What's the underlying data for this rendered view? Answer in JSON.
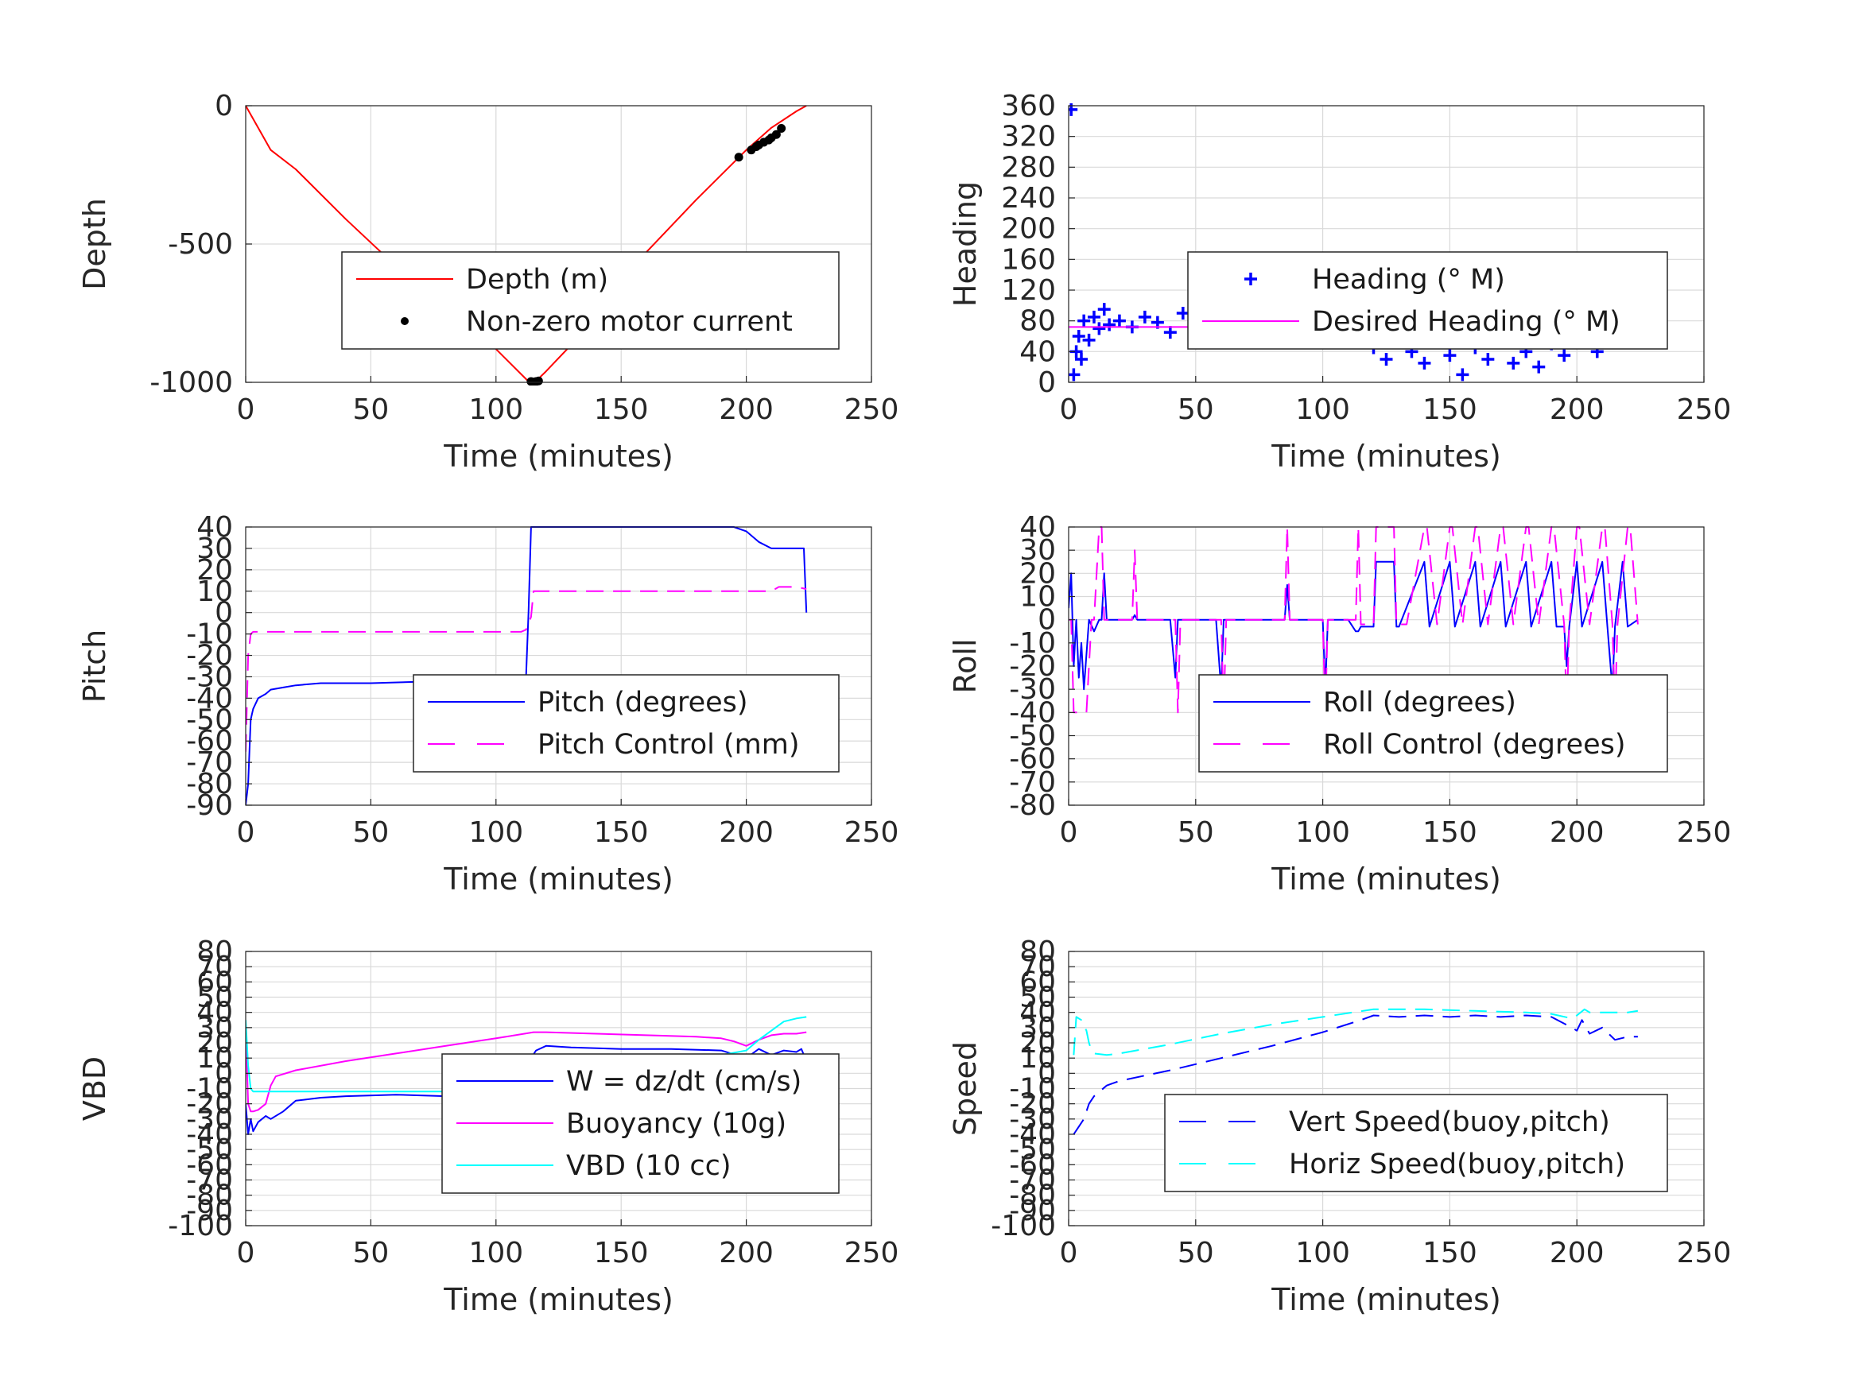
{
  "chart_data": [
    {
      "type": "line",
      "ylabel": "Depth",
      "xlabel": "Time (minutes)",
      "xlim": [
        0,
        250
      ],
      "ylim": [
        -1000,
        0
      ],
      "xticks": [
        0,
        50,
        100,
        150,
        200,
        250
      ],
      "yticks": [
        -1000,
        -500,
        0
      ],
      "legend": {
        "placement": "center",
        "entries": [
          "Depth (m)",
          "Non-zero motor current"
        ]
      },
      "series": [
        {
          "name": "Depth (m)",
          "color": "#ff0000",
          "style": "solid",
          "x": [
            0,
            5,
            10,
            20,
            40,
            60,
            80,
            100,
            113,
            116,
            120,
            140,
            160,
            180,
            200,
            210,
            220,
            224
          ],
          "y": [
            0,
            -80,
            -160,
            -230,
            -410,
            -580,
            -730,
            -880,
            -997,
            -995,
            -960,
            -770,
            -530,
            -340,
            -160,
            -80,
            -20,
            0
          ]
        },
        {
          "name": "Non-zero motor current",
          "color": "#000000",
          "style": "marker-dot",
          "x": [
            114,
            115,
            116,
            117,
            197,
            202,
            204,
            205,
            207,
            209,
            210,
            212,
            214
          ],
          "y": [
            -997,
            -999,
            -997,
            -995,
            -186,
            -160,
            -148,
            -142,
            -132,
            -124,
            -116,
            -104,
            -82
          ]
        }
      ]
    },
    {
      "type": "scatter",
      "ylabel": "Heading",
      "xlabel": "Time (minutes)",
      "xlim": [
        0,
        250
      ],
      "ylim": [
        0,
        360
      ],
      "xticks": [
        0,
        50,
        100,
        150,
        200,
        250
      ],
      "yticks": [
        0,
        40,
        80,
        120,
        160,
        200,
        240,
        280,
        320,
        360
      ],
      "legend": {
        "placement": "center",
        "entries": [
          "Heading (° M)",
          "Desired Heading (° M)"
        ]
      },
      "series": [
        {
          "name": "Heading (° M)",
          "color": "#0000ff",
          "style": "marker-plus",
          "x": [
            1,
            2,
            3,
            4,
            5,
            6,
            8,
            10,
            12,
            14,
            16,
            20,
            25,
            30,
            35,
            40,
            45,
            50,
            55,
            60,
            65,
            70,
            75,
            80,
            85,
            90,
            95,
            100,
            105,
            110,
            115,
            118,
            120,
            125,
            130,
            135,
            140,
            145,
            150,
            155,
            160,
            165,
            170,
            175,
            180,
            185,
            190,
            195,
            200,
            203,
            205,
            208,
            210,
            215,
            220,
            224
          ],
          "y": [
            355,
            10,
            40,
            60,
            30,
            80,
            55,
            85,
            70,
            95,
            75,
            80,
            72,
            85,
            78,
            65,
            90,
            70,
            80,
            75,
            72,
            78,
            70,
            75,
            80,
            72,
            70,
            65,
            72,
            75,
            70,
            65,
            45,
            30,
            55,
            40,
            25,
            60,
            35,
            10,
            45,
            30,
            55,
            25,
            40,
            20,
            50,
            35,
            65,
            130,
            90,
            40,
            75,
            60,
            100,
            65
          ]
        },
        {
          "name": "Desired Heading (° M)",
          "color": "#ff00ff",
          "style": "solid",
          "x": [
            0,
            224
          ],
          "y": [
            72,
            72
          ]
        }
      ]
    },
    {
      "type": "line",
      "ylabel": "Pitch",
      "xlabel": "Time (minutes)",
      "xlim": [
        0,
        250
      ],
      "ylim": [
        -90,
        40
      ],
      "xticks": [
        0,
        50,
        100,
        150,
        200,
        250
      ],
      "yticks": [
        -90,
        -80,
        -70,
        -60,
        -50,
        -40,
        -30,
        -20,
        -10,
        0,
        10,
        20,
        30,
        40
      ],
      "legend": {
        "placement": "center",
        "entries": [
          "Pitch (degrees)",
          "Pitch Control (mm)"
        ]
      },
      "series": [
        {
          "name": "Pitch (degrees)",
          "color": "#0000ff",
          "style": "solid",
          "x": [
            0,
            1,
            2,
            3,
            5,
            8,
            10,
            15,
            20,
            30,
            50,
            80,
            100,
            110,
            112,
            113,
            114,
            115,
            120,
            150,
            180,
            195,
            200,
            205,
            210,
            215,
            220,
            223,
            224
          ],
          "y": [
            -90,
            -80,
            -50,
            -45,
            -40,
            -38,
            -36,
            -35,
            -34,
            -33,
            -33,
            -32,
            -32,
            -31,
            -30,
            0,
            40,
            40,
            40,
            40,
            40,
            40,
            38,
            33,
            30,
            30,
            30,
            30,
            0
          ]
        },
        {
          "name": "Pitch Control (mm)",
          "color": "#ff00ff",
          "style": "dashed",
          "x": [
            0,
            1,
            2,
            3,
            5,
            100,
            110,
            112,
            113,
            114,
            115,
            120,
            150,
            200,
            210,
            213,
            220,
            224
          ],
          "y": [
            -65,
            -20,
            -10,
            -9,
            -9,
            -9,
            -9,
            -8,
            -5,
            -2,
            10,
            10,
            10,
            10,
            10,
            12,
            12,
            11
          ]
        }
      ]
    },
    {
      "type": "line",
      "ylabel": "Roll",
      "xlabel": "Time (minutes)",
      "xlim": [
        0,
        250
      ],
      "ylim": [
        -80,
        40
      ],
      "xticks": [
        0,
        50,
        100,
        150,
        200,
        250
      ],
      "yticks": [
        -80,
        -70,
        -60,
        -50,
        -40,
        -30,
        -20,
        -10,
        0,
        10,
        20,
        30,
        40
      ],
      "legend": {
        "placement": "center",
        "entries": [
          "Roll (degrees)",
          "Roll Control (degrees)"
        ]
      },
      "series": [
        {
          "name": "Roll (degrees)",
          "color": "#0000ff",
          "style": "solid",
          "x": [
            0,
            1,
            2,
            3,
            4,
            5,
            6,
            8,
            10,
            12,
            13,
            14,
            15,
            20,
            25,
            26,
            27,
            30,
            40,
            42,
            43,
            44,
            50,
            58,
            60,
            61,
            62,
            80,
            85,
            86,
            87,
            100,
            101,
            102,
            110,
            113,
            114,
            115,
            120,
            121,
            122,
            128,
            129,
            130,
            140,
            142,
            150,
            152,
            160,
            162,
            170,
            172,
            180,
            182,
            190,
            192,
            195,
            196,
            197,
            200,
            202,
            210,
            212,
            214,
            215,
            218,
            220,
            224
          ],
          "y": [
            5,
            20,
            -20,
            0,
            -25,
            -10,
            -30,
            0,
            -5,
            0,
            0,
            20,
            0,
            0,
            0,
            2,
            0,
            0,
            0,
            -25,
            0,
            0,
            0,
            0,
            -30,
            0,
            0,
            0,
            0,
            15,
            0,
            0,
            -30,
            0,
            0,
            -5,
            -5,
            -3,
            -3,
            25,
            25,
            25,
            -3,
            -3,
            25,
            -3,
            25,
            -3,
            25,
            -3,
            25,
            -3,
            25,
            -3,
            25,
            -3,
            -3,
            -20,
            -3,
            25,
            -3,
            25,
            -3,
            -30,
            -3,
            25,
            -3,
            0
          ]
        },
        {
          "name": "Roll Control (degrees)",
          "color": "#ff00ff",
          "style": "dashed",
          "x": [
            0,
            1,
            2,
            3,
            5,
            7,
            9,
            10,
            12,
            13,
            14,
            16,
            25,
            26,
            27,
            42,
            43,
            44,
            60,
            61,
            62,
            85,
            86,
            87,
            100,
            101,
            102,
            113,
            114,
            115,
            120,
            121,
            123,
            128,
            129,
            133,
            140,
            141,
            145,
            150,
            151,
            155,
            160,
            161,
            165,
            170,
            171,
            175,
            180,
            181,
            185,
            190,
            191,
            195,
            196,
            197,
            200,
            201,
            205,
            210,
            211,
            214,
            215,
            216,
            220,
            221,
            224
          ],
          "y": [
            0,
            0,
            -40,
            -40,
            -40,
            -40,
            0,
            0,
            40,
            40,
            0,
            0,
            0,
            30,
            0,
            0,
            -40,
            0,
            0,
            -40,
            0,
            0,
            40,
            0,
            0,
            -40,
            0,
            0,
            40,
            -2,
            -2,
            40,
            40,
            40,
            -2,
            -2,
            40,
            40,
            -2,
            40,
            40,
            -2,
            40,
            40,
            -2,
            40,
            40,
            -2,
            40,
            40,
            -2,
            40,
            40,
            -2,
            -40,
            -2,
            40,
            40,
            -2,
            40,
            40,
            -2,
            -40,
            -2,
            40,
            40,
            -2
          ]
        }
      ]
    },
    {
      "type": "line",
      "ylabel": "VBD",
      "xlabel": "Time (minutes)",
      "xlim": [
        0,
        250
      ],
      "ylim": [
        -100,
        80
      ],
      "xticks": [
        0,
        50,
        100,
        150,
        200,
        250
      ],
      "yticks": [
        -100,
        -90,
        -80,
        -70,
        -60,
        -50,
        -40,
        -30,
        -20,
        -10,
        0,
        10,
        20,
        30,
        40,
        50,
        60,
        70,
        80
      ],
      "legend": {
        "placement": "center",
        "entries": [
          "W = dz/dt (cm/s)",
          "Buoyancy (10g)",
          "VBD (10 cc)"
        ]
      },
      "series": [
        {
          "name": "W = dz/dt (cm/s)",
          "color": "#0000ff",
          "style": "solid",
          "x": [
            0,
            1,
            2,
            3,
            5,
            8,
            10,
            15,
            20,
            30,
            40,
            60,
            80,
            100,
            112,
            113,
            114,
            116,
            120,
            130,
            150,
            170,
            190,
            200,
            205,
            210,
            215,
            220,
            222,
            224
          ],
          "y": [
            -20,
            -40,
            -30,
            -38,
            -32,
            -28,
            -30,
            -25,
            -18,
            -16,
            -15,
            -14,
            -15,
            -16,
            -14,
            0,
            10,
            15,
            18,
            17,
            16,
            16,
            15,
            10,
            16,
            12,
            15,
            14,
            16,
            8
          ]
        },
        {
          "name": "Buoyancy (10g)",
          "color": "#ff00ff",
          "style": "solid",
          "x": [
            0,
            1,
            2,
            3,
            5,
            8,
            10,
            12,
            20,
            40,
            60,
            80,
            100,
            115,
            118,
            120,
            140,
            160,
            180,
            190,
            195,
            200,
            205,
            210,
            215,
            220,
            224
          ],
          "y": [
            30,
            -20,
            -25,
            -25,
            -24,
            -20,
            -8,
            -2,
            2,
            8,
            13,
            18,
            23,
            27,
            27,
            27,
            26,
            25,
            24,
            23,
            21,
            18,
            22,
            25,
            26,
            26,
            27
          ]
        },
        {
          "name": "VBD (10 cc)",
          "color": "#00ffff",
          "style": "solid",
          "x": [
            0,
            1,
            2,
            3,
            5,
            10,
            50,
            100,
            113,
            114,
            115,
            117,
            150,
            190,
            200,
            205,
            210,
            215,
            220,
            224
          ],
          "y": [
            35,
            5,
            -10,
            -12,
            -12,
            -12,
            -12,
            -12,
            -12,
            5,
            10,
            12,
            12,
            12,
            15,
            22,
            28,
            34,
            36,
            37
          ]
        }
      ]
    },
    {
      "type": "line",
      "ylabel": "Speed",
      "xlabel": "Time (minutes)",
      "xlim": [
        0,
        250
      ],
      "ylim": [
        -100,
        80
      ],
      "xticks": [
        0,
        50,
        100,
        150,
        200,
        250
      ],
      "yticks": [
        -100,
        -90,
        -80,
        -70,
        -60,
        -50,
        -40,
        -30,
        -20,
        -10,
        0,
        10,
        20,
        30,
        40,
        50,
        60,
        70,
        80
      ],
      "legend": {
        "placement": "center",
        "entries": [
          "Vert Speed(buoy,pitch)",
          "Horiz Speed(buoy,pitch)"
        ]
      },
      "series": [
        {
          "name": "Vert Speed(buoy,pitch)",
          "color": "#0000ff",
          "style": "dashed",
          "x": [
            2,
            4,
            6,
            8,
            10,
            15,
            20,
            40,
            60,
            80,
            100,
            115,
            120,
            130,
            140,
            150,
            160,
            170,
            180,
            190,
            198,
            200,
            202,
            205,
            210,
            215,
            220,
            224
          ],
          "y": [
            -40,
            -35,
            -30,
            -20,
            -15,
            -8,
            -5,
            2,
            10,
            18,
            27,
            35,
            38,
            37,
            38,
            37,
            38,
            37,
            38,
            37,
            30,
            28,
            35,
            26,
            30,
            22,
            24,
            24
          ]
        },
        {
          "name": "Horiz Speed(buoy,pitch)",
          "color": "#00ffff",
          "style": "dashed",
          "x": [
            2,
            3,
            5,
            7,
            8,
            9,
            10,
            15,
            20,
            40,
            60,
            80,
            100,
            120,
            140,
            160,
            180,
            190,
            198,
            200,
            203,
            205,
            210,
            215,
            220,
            224
          ],
          "y": [
            12,
            37,
            35,
            28,
            20,
            15,
            13,
            12,
            13,
            19,
            26,
            32,
            37,
            42,
            42,
            41,
            40,
            39,
            36,
            38,
            42,
            40,
            40,
            40,
            40,
            41
          ]
        }
      ]
    }
  ]
}
